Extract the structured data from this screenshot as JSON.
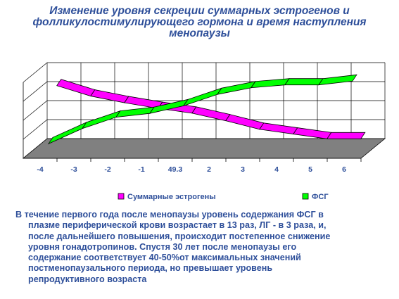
{
  "title": "Изменение уровня секреции суммарных эстрогенов и фолликулостимулирующего гормона и время наступления менопаузы",
  "title_lines": [
    "Изменение уровня секреции суммарных эстрогенов и",
    "фолликулостимулирующего гормона и время наступления",
    "менопаузы"
  ],
  "chart_data": {
    "type": "area",
    "categories": [
      "-4",
      "-3",
      "-2",
      "-1",
      "49.3",
      "2",
      "3",
      "4",
      "5",
      "6"
    ],
    "series": [
      {
        "name": "Суммарные эстрогены",
        "color": "#ff00ff",
        "values": [
          3.1,
          2.55,
          2.2,
          1.9,
          1.65,
          1.25,
          0.8,
          0.55,
          0.3,
          0.3
        ]
      },
      {
        "name": "ФСГ",
        "color": "#00ff00",
        "values": [
          0.4,
          1.2,
          1.8,
          2.0,
          2.4,
          3.0,
          3.35,
          3.5,
          3.5,
          3.7
        ]
      }
    ],
    "ylim": [
      0,
      4
    ],
    "grid": true,
    "legend": "bottom",
    "floor_color": "#808080",
    "xlabel": "",
    "ylabel": ""
  },
  "caption_lines": [
    "В течение первого года после менопаузы уровень содержания ФСГ в",
    "плазме периферической крови возрастает в 13 раз, ЛГ - в 3 раза, и,",
    "после дальнейшего повышения, происходит постепенное снижение",
    "уровня гонадотропинов. Спустя 30 лет после менопаузы его",
    "содержание соответствует 40-50%от максимальных значений",
    "постменопаузального периода, но превышает уровень",
    "репродуктивного возраста"
  ]
}
